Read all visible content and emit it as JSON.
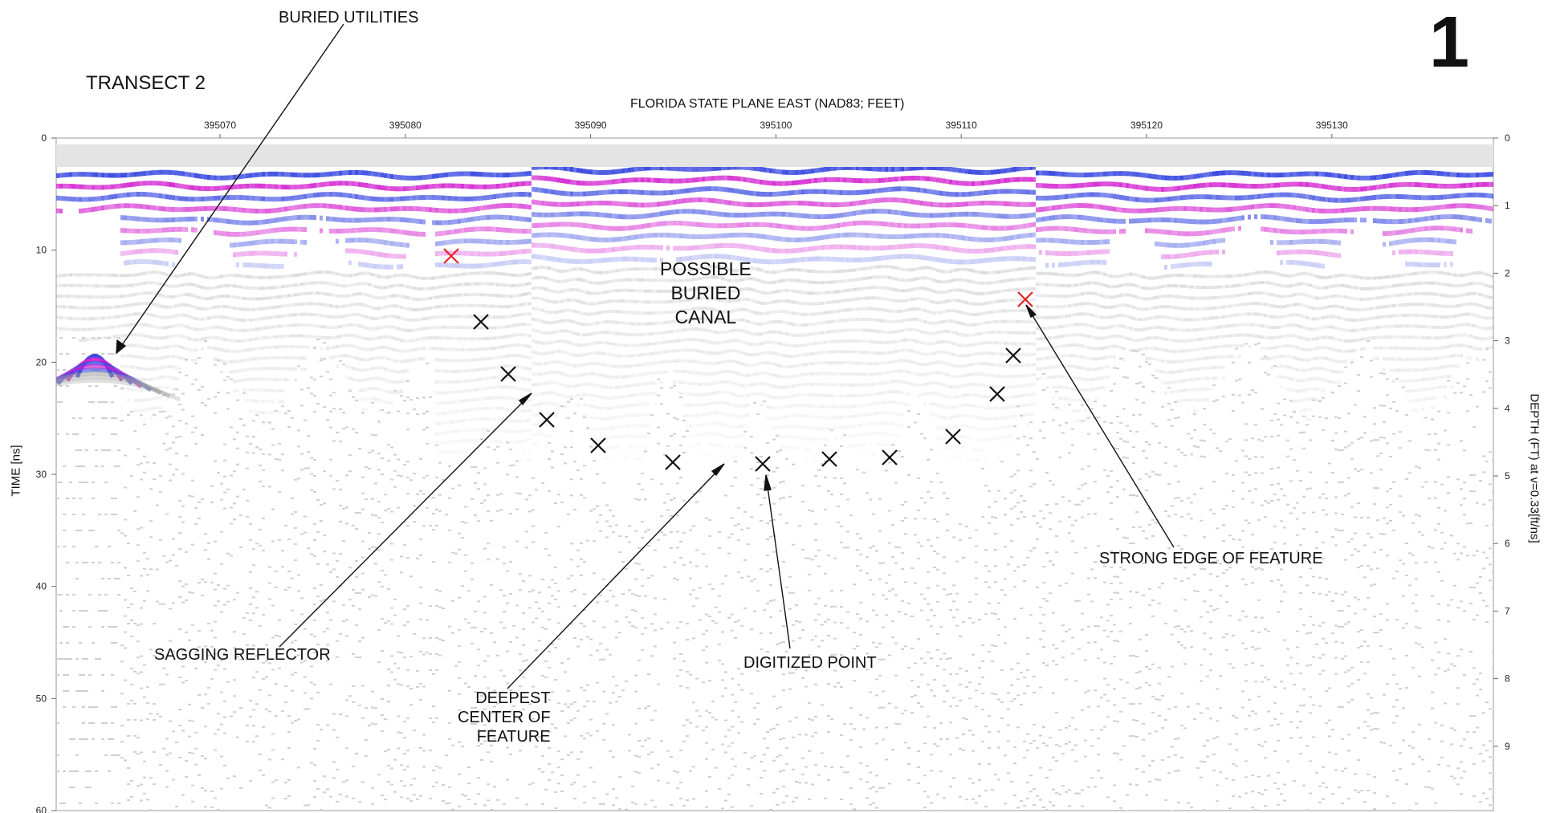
{
  "figure_number": "1",
  "transect_title": "TRANSECT 2",
  "x_axis_title": "FLORIDA STATE PLANE EAST (NAD83; FEET)",
  "left_axis_title": "TIME [ns]",
  "right_axis_title": "DEPTH (FT) at v=0.33[ft/ns]",
  "x_ticks": [
    "395070",
    "395080",
    "395090",
    "395100",
    "395110",
    "395120",
    "395130"
  ],
  "time_ticks": [
    "0",
    "10",
    "20",
    "30",
    "40",
    "50",
    "60"
  ],
  "depth_ticks": [
    "0",
    "1",
    "2",
    "3",
    "4",
    "5",
    "6",
    "7",
    "8",
    "9"
  ],
  "annotations": {
    "buried_utilities": "BURIED UTILITIES",
    "possible_canal": [
      "POSSIBLE",
      "BURIED",
      "CANAL"
    ],
    "sagging_reflector": "SAGGING REFLECTOR",
    "deepest_center": [
      "DEEPEST",
      "CENTER OF",
      "FEATURE"
    ],
    "digitized_point": "DIGITIZED POINT",
    "strong_edge": "STRONG EDGE OF FEATURE"
  },
  "marker_colors": {
    "black": "#111111",
    "red": "#e8231d"
  },
  "radargram_colors": {
    "positive": "#d21ecf",
    "negative": "#3c4ce0",
    "gray": "#8a8a8a"
  }
}
